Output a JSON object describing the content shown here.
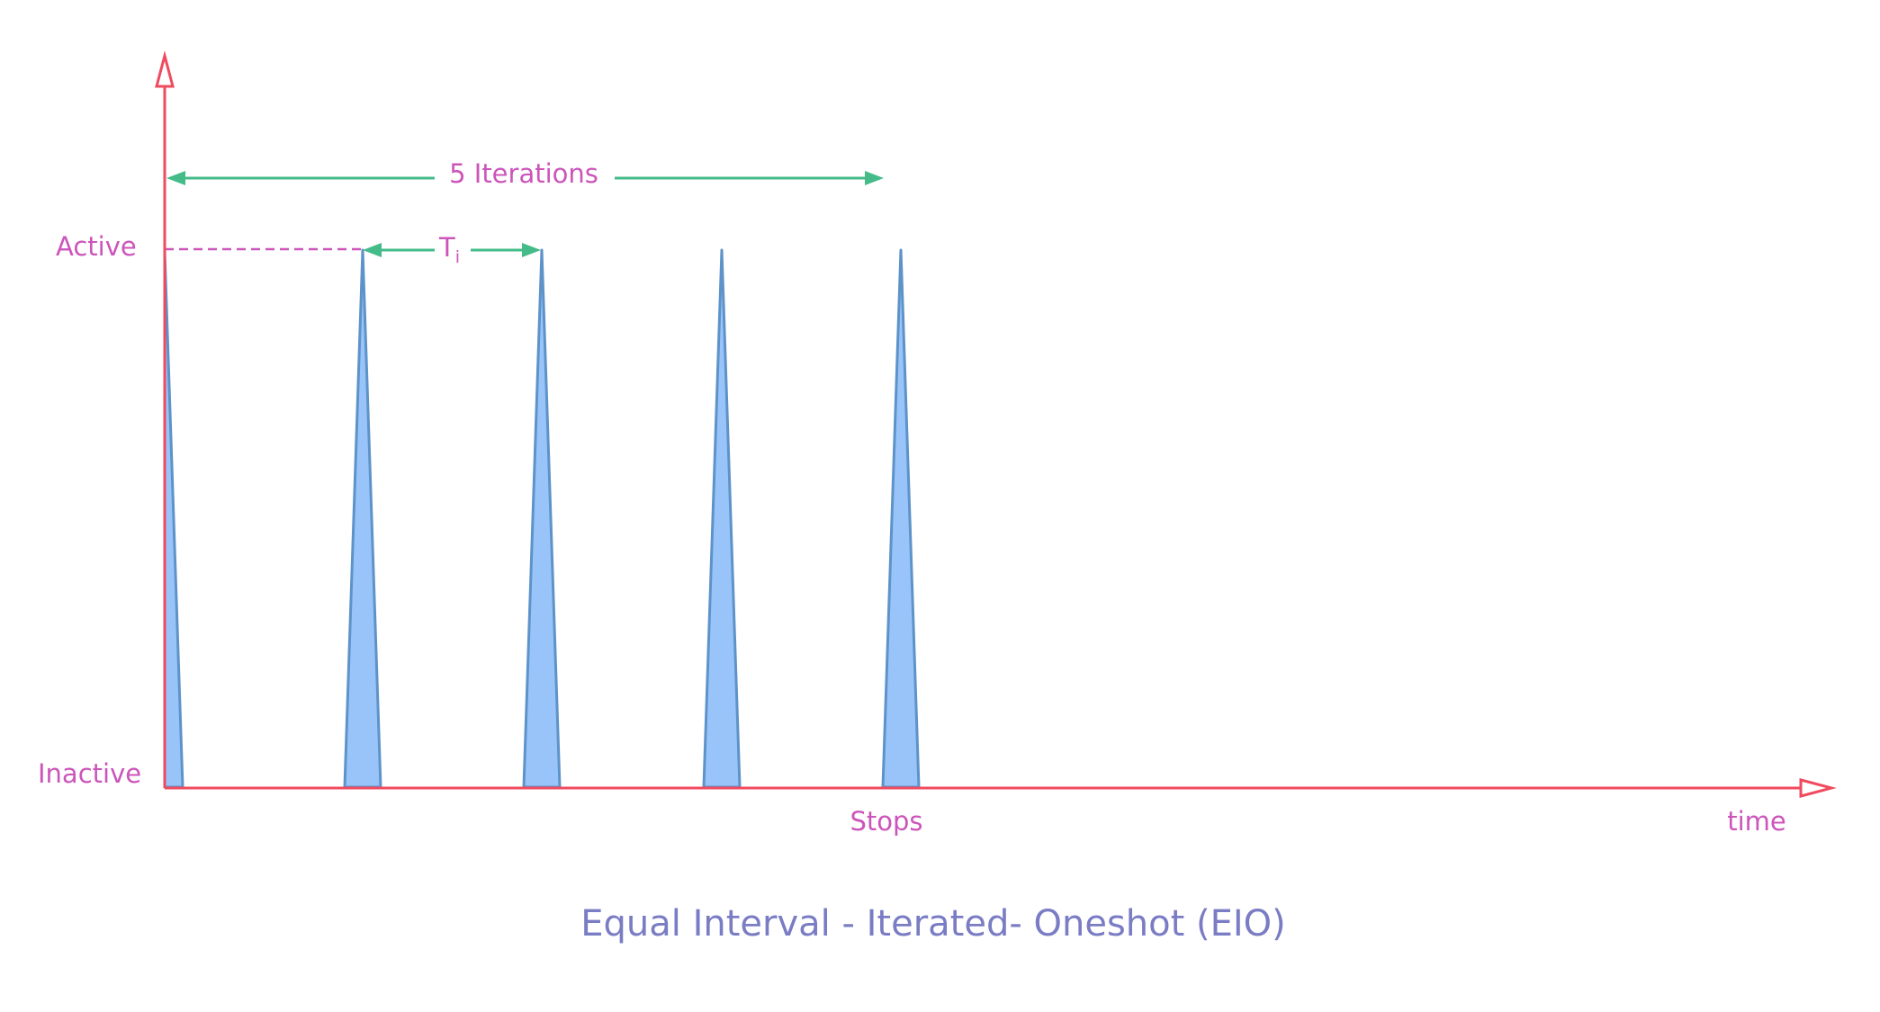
{
  "labels": {
    "active": "Active",
    "inactive": "Inactive",
    "iterations": "5 Iterations",
    "interval_main": "T",
    "interval_sub": "i",
    "stops": "Stops",
    "time": "time"
  },
  "title": "Equal Interval - Iterated- Oneshot (EIO)",
  "pulses": {
    "count": 5
  },
  "colors": {
    "axis": "#f04a5e",
    "label": "#cc55bb",
    "arrow": "#44bb88",
    "pulse_fill": "#99c4fa",
    "pulse_stroke": "#5d93c8",
    "title": "#7a7cc4",
    "dashed": "#cc55bb"
  }
}
